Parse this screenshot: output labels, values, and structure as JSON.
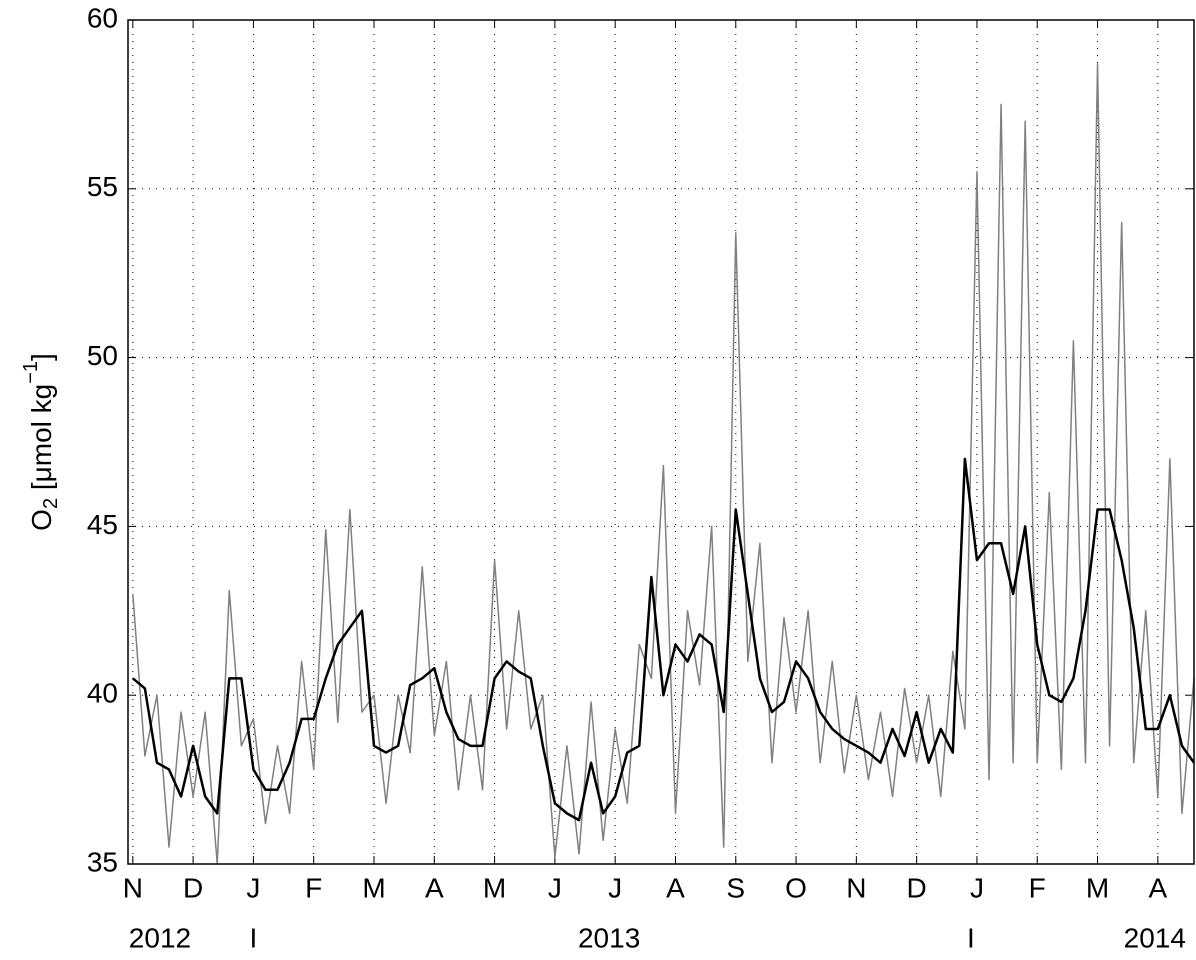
{
  "chart_data": {
    "type": "line",
    "ylabel": {
      "base": "O",
      "sub": "2",
      "mid": " [μmol kg",
      "sup": "−1",
      "end": "]"
    },
    "x": [
      0,
      0.2,
      0.4,
      0.6,
      0.8,
      1,
      1.2,
      1.4,
      1.6,
      1.8,
      2,
      2.2,
      2.4,
      2.6,
      2.8,
      3,
      3.2,
      3.4,
      3.6,
      3.8,
      4,
      4.2,
      4.4,
      4.6,
      4.8,
      5,
      5.2,
      5.4,
      5.6,
      5.8,
      6,
      6.2,
      6.4,
      6.6,
      6.8,
      7,
      7.2,
      7.4,
      7.6,
      7.8,
      8,
      8.2,
      8.4,
      8.6,
      8.8,
      9,
      9.2,
      9.4,
      9.6,
      9.8,
      10,
      10.2,
      10.4,
      10.6,
      10.8,
      11,
      11.2,
      11.4,
      11.6,
      11.8,
      12,
      12.2,
      12.4,
      12.6,
      12.8,
      13,
      13.2,
      13.4,
      13.6,
      13.8,
      14,
      14.2,
      14.4,
      14.6,
      14.8,
      15,
      15.2,
      15.4,
      15.6,
      15.8,
      16,
      16.2,
      16.4,
      16.6,
      16.8,
      17,
      17.2,
      17.4,
      17.6
    ],
    "series": [
      {
        "color": "#808080",
        "width": 1.5,
        "values": [
          43,
          38.2,
          40,
          35.5,
          39.5,
          37,
          39.5,
          35,
          43.1,
          38.5,
          39.3,
          36.2,
          38.5,
          36.5,
          41,
          37.8,
          44.9,
          39.2,
          45.5,
          39.5,
          40,
          36.8,
          40,
          38.3,
          43.8,
          38.8,
          41,
          37.2,
          40,
          37.2,
          44,
          39,
          42.5,
          39,
          40,
          35.2,
          38.5,
          35.3,
          39.8,
          35.7,
          39,
          36.8,
          41.5,
          40.5,
          46.8,
          36.5,
          42.5,
          40.3,
          45,
          35.5,
          53.7,
          41,
          44.5,
          38,
          42.3,
          39.5,
          42.5,
          38,
          41,
          37.7,
          40,
          37.5,
          39.5,
          37,
          40.2,
          38,
          40,
          37,
          41.3,
          39,
          55.5,
          37.5,
          57.5,
          38,
          57,
          38,
          46,
          37.8,
          50.5,
          38,
          58.7,
          38.5,
          54,
          38,
          42.5,
          37,
          47,
          36.5,
          40.5
        ]
      },
      {
        "color": "#000000",
        "width": 2.5,
        "values": [
          40.5,
          40.2,
          38,
          37.8,
          37,
          38.5,
          37,
          36.5,
          40.5,
          40.5,
          37.8,
          37.2,
          37.2,
          38,
          39.3,
          39.3,
          40.5,
          41.5,
          42,
          42.5,
          38.5,
          38.3,
          38.5,
          40.3,
          40.5,
          40.8,
          39.5,
          38.7,
          38.5,
          38.5,
          40.5,
          41,
          40.7,
          40.5,
          38.5,
          36.8,
          36.5,
          36.3,
          38,
          36.5,
          37,
          38.3,
          38.5,
          43.5,
          40,
          41.5,
          41,
          41.8,
          41.5,
          39.5,
          45.5,
          43,
          40.5,
          39.5,
          39.8,
          41,
          40.5,
          39.5,
          39,
          38.7,
          38.5,
          38.3,
          38,
          39,
          38.2,
          39.5,
          38,
          39,
          38.3,
          47,
          44,
          44.5,
          44.5,
          43,
          45,
          41.5,
          40,
          39.8,
          40.5,
          42.5,
          45.5,
          45.5,
          44,
          42,
          39,
          39,
          40,
          38.5,
          38
        ]
      }
    ],
    "xlim": [
      -0.08,
      17.6
    ],
    "xticks": [
      {
        "value": 0,
        "label": "N"
      },
      {
        "value": 1,
        "label": "D"
      },
      {
        "value": 2,
        "label": "J"
      },
      {
        "value": 3,
        "label": "F"
      },
      {
        "value": 4,
        "label": "M"
      },
      {
        "value": 5,
        "label": "A"
      },
      {
        "value": 6,
        "label": "M"
      },
      {
        "value": 7,
        "label": "J"
      },
      {
        "value": 8,
        "label": "J"
      },
      {
        "value": 9,
        "label": "A"
      },
      {
        "value": 10,
        "label": "S"
      },
      {
        "value": 11,
        "label": "O"
      },
      {
        "value": 12,
        "label": "N"
      },
      {
        "value": 13,
        "label": "D"
      },
      {
        "value": 14,
        "label": "J"
      },
      {
        "value": 15,
        "label": "F"
      },
      {
        "value": 16,
        "label": "M"
      },
      {
        "value": 17,
        "label": "A"
      }
    ],
    "x_secondary_labels": [
      {
        "value": 0.45,
        "label": "2012"
      },
      {
        "value": 2,
        "label": "I"
      },
      {
        "value": 7.9,
        "label": "2013"
      },
      {
        "value": 13.9,
        "label": "I"
      },
      {
        "value": 16.95,
        "label": "2014"
      }
    ],
    "ylim": [
      35,
      60
    ],
    "yticks": [
      35,
      40,
      45,
      50,
      55,
      60
    ],
    "grid": true
  }
}
